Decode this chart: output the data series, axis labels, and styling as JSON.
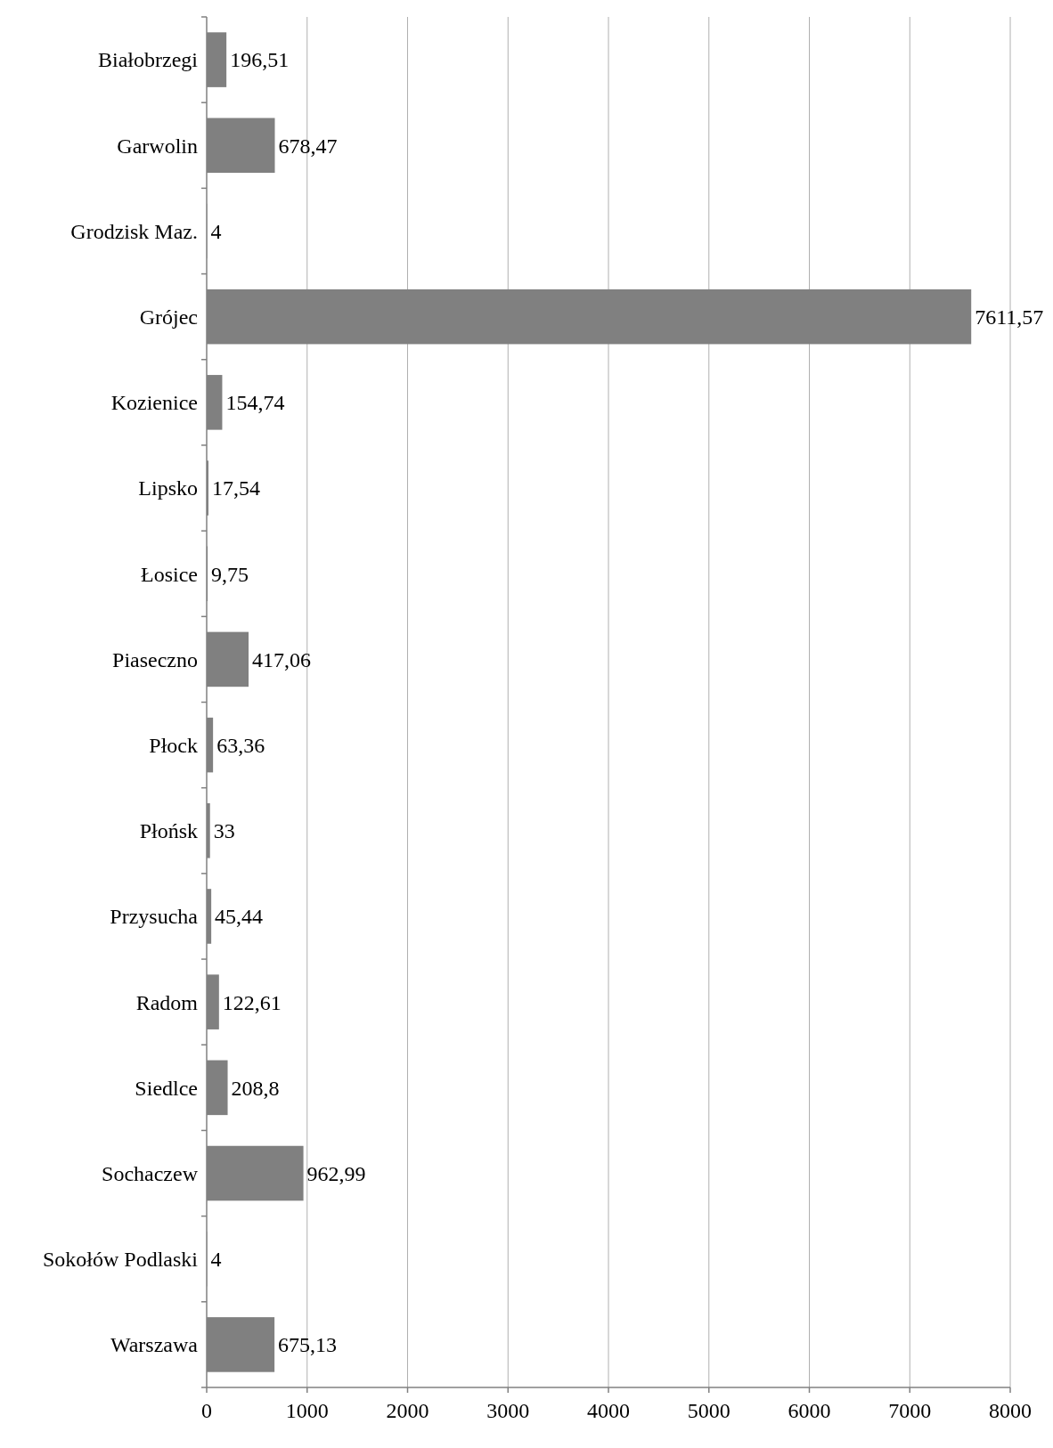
{
  "chart_data": {
    "type": "bar",
    "orientation": "horizontal",
    "categories": [
      "Białobrzegi",
      "Garwolin",
      "Grodzisk Maz.",
      "Grójec",
      "Kozienice",
      "Lipsko",
      "Łosice",
      "Piaseczno",
      "Płock",
      "Płońsk",
      "Przysucha",
      "Radom",
      "Siedlce",
      "Sochaczew",
      "Sokołów Podlaski",
      "Warszawa"
    ],
    "values": [
      196.51,
      678.47,
      4,
      7611.57,
      154.74,
      17.54,
      9.75,
      417.06,
      63.36,
      33,
      45.44,
      122.61,
      208.8,
      962.99,
      4,
      675.13
    ],
    "value_labels": [
      "196,51",
      "678,47",
      "4",
      "7611,57",
      "154,74",
      "17,54",
      "9,75",
      "417,06",
      "63,36",
      "33",
      "45,44",
      "122,61",
      "208,8",
      "962,99",
      "4",
      "675,13"
    ],
    "color": "#808080",
    "xlim": [
      0,
      8000
    ],
    "xticks": [
      0,
      1000,
      2000,
      3000,
      4000,
      5000,
      6000,
      7000,
      8000
    ],
    "grid": "x"
  }
}
